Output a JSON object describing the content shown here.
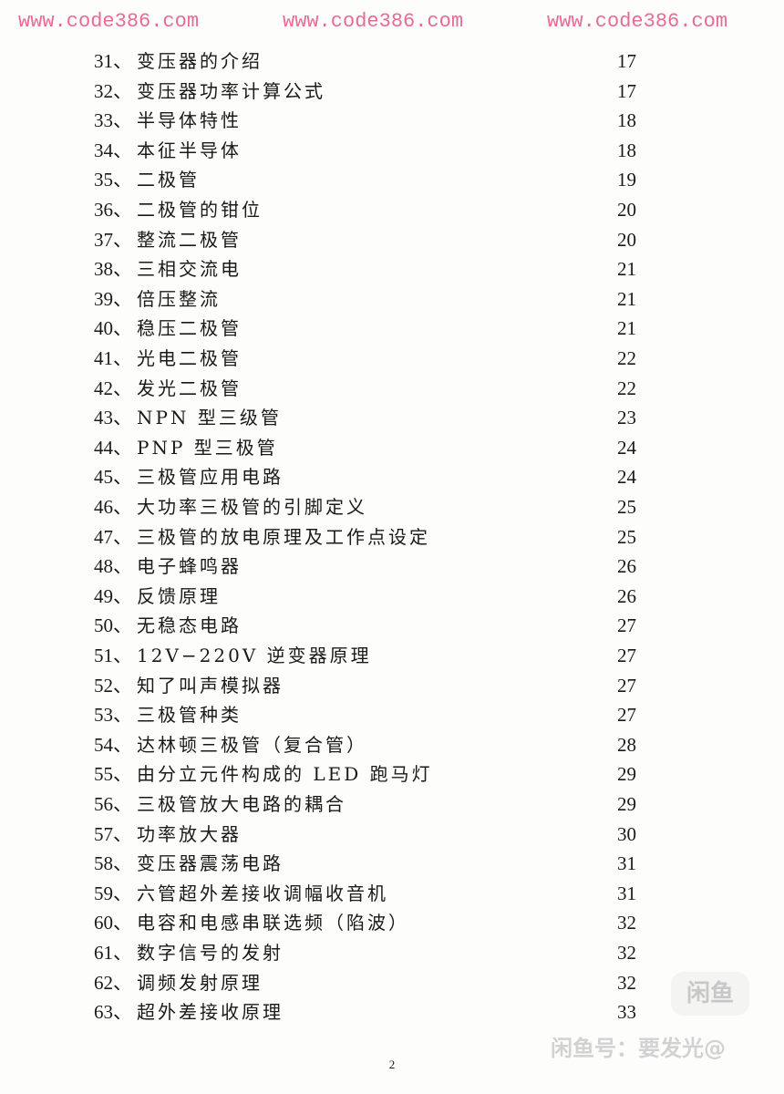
{
  "toc": [
    {
      "num": "31、",
      "title": "变压器的介绍",
      "page": "17"
    },
    {
      "num": "32、",
      "title": "变压器功率计算公式",
      "page": "17"
    },
    {
      "num": "33、",
      "title": "半导体特性",
      "page": "18"
    },
    {
      "num": "34、",
      "title": "本征半导体",
      "page": "18"
    },
    {
      "num": "35、",
      "title": "二极管",
      "page": "19"
    },
    {
      "num": "36、",
      "title": "二极管的钳位",
      "page": "20"
    },
    {
      "num": "37、",
      "title": "整流二极管",
      "page": "20"
    },
    {
      "num": "38、",
      "title": "三相交流电",
      "page": "21"
    },
    {
      "num": "39、",
      "title": "倍压整流",
      "page": "21"
    },
    {
      "num": "40、",
      "title": "稳压二极管",
      "page": "21"
    },
    {
      "num": "41、",
      "title": "光电二极管",
      "page": "22"
    },
    {
      "num": "42、",
      "title": "发光二极管",
      "page": "22"
    },
    {
      "num": "43、",
      "title": "NPN 型三级管",
      "page": "23"
    },
    {
      "num": "44、",
      "title": "PNP  型三极管",
      "page": "24"
    },
    {
      "num": "45、",
      "title": "三极管应用电路",
      "page": "24"
    },
    {
      "num": "46、",
      "title": "大功率三极管的引脚定义",
      "page": "25"
    },
    {
      "num": "47、",
      "title": "三极管的放电原理及工作点设定",
      "page": "25"
    },
    {
      "num": "48、",
      "title": "电子蜂鸣器",
      "page": "26"
    },
    {
      "num": "49、",
      "title": "反馈原理",
      "page": "26"
    },
    {
      "num": "50、",
      "title": "无稳态电路",
      "page": "27"
    },
    {
      "num": "51、",
      "title": "12V−220V  逆变器原理",
      "page": "27"
    },
    {
      "num": "52、",
      "title": "知了叫声模拟器",
      "page": "27"
    },
    {
      "num": "53、",
      "title": "三极管种类",
      "page": "27"
    },
    {
      "num": "54、",
      "title": "达林顿三极管（复合管）",
      "page": "28"
    },
    {
      "num": "55、",
      "title": "由分立元件构成的 LED 跑马灯",
      "page": "29"
    },
    {
      "num": "56、",
      "title": "三极管放大电路的耦合",
      "page": "29"
    },
    {
      "num": "57、",
      "title": "功率放大器",
      "page": "30"
    },
    {
      "num": "58、",
      "title": "变压器震荡电路",
      "page": "31"
    },
    {
      "num": "59、",
      "title": "六管超外差接收调幅收音机",
      "page": "31"
    },
    {
      "num": "60、",
      "title": "电容和电感串联选频（陷波）",
      "page": "32"
    },
    {
      "num": "61、",
      "title": "数字信号的发射",
      "page": "32"
    },
    {
      "num": "62、",
      "title": "调频发射原理",
      "page": "32"
    },
    {
      "num": "63、",
      "title": "超外差接收原理",
      "page": "33"
    }
  ],
  "footer": {
    "page_number": "2"
  },
  "watermarks": [
    "www.code386.com",
    "www.code386.com",
    "www.code386.com"
  ],
  "overlay": {
    "logo": "闲鱼",
    "seller": "闲鱼号：要发光@"
  }
}
